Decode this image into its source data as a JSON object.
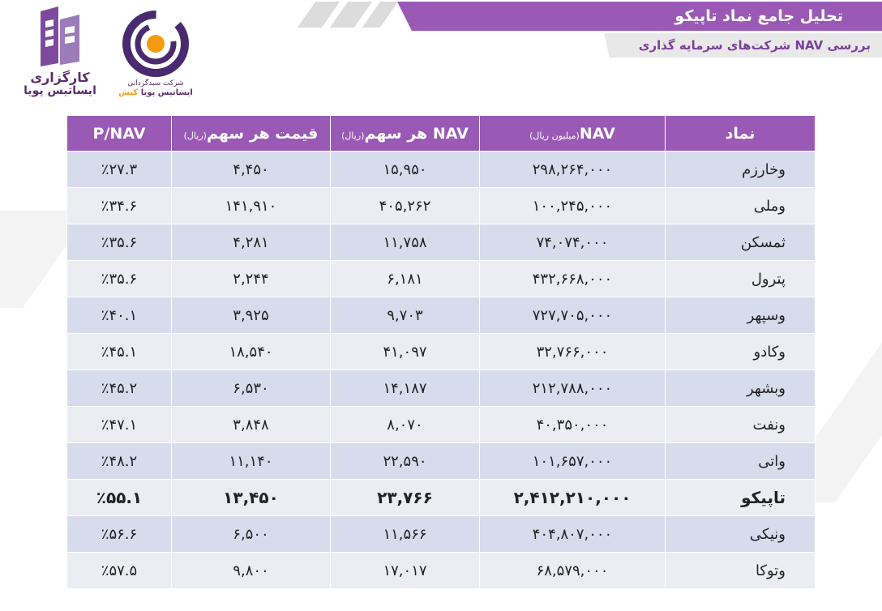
{
  "header": {
    "title": "تحلیل جامع نماد تاپیکو",
    "subtitle": "بررسی NAV شرکت‌های سرمایه گذاری"
  },
  "logos": {
    "left_line1": "کارگزاری",
    "left_line2": "ایساتیس پویا",
    "mid_caption1": "شرکت سبدگردانی",
    "mid_caption2_main": "ایساتیس پویا",
    "mid_caption2_accent": "کیش"
  },
  "colors": {
    "header_purple": "#9b59b6",
    "row_dark": "#d7dced",
    "row_light": "#ecedf3",
    "logo_orange": "#f39c12"
  },
  "table": {
    "headers": {
      "pnav": "P/NAV",
      "price": "قیمت هر سهم",
      "price_unit": "(ریال)",
      "nav_per_share": "NAV هر سهم",
      "nav_per_share_unit": "(ریال)",
      "nav": "NAV",
      "nav_unit": "(میلیون ریال)",
      "symbol": "نماد"
    },
    "rows": [
      {
        "symbol": "وخارزم",
        "nav": "۲۹۸,۲۶۴,۰۰۰",
        "nav_per_share": "۱۵,۹۵۰",
        "price": "۴,۴۵۰",
        "pnav": "٪۲۷.۳"
      },
      {
        "symbol": "وملی",
        "nav": "۱۰۰,۲۴۵,۰۰۰",
        "nav_per_share": "۴۰۵,۲۶۲",
        "price": "۱۴۱,۹۱۰",
        "pnav": "٪۳۴.۶"
      },
      {
        "symbol": "ثمسکن",
        "nav": "۷۴,۰۷۴,۰۰۰",
        "nav_per_share": "۱۱,۷۵۸",
        "price": "۴,۲۸۱",
        "pnav": "٪۳۵.۶"
      },
      {
        "symbol": "پترول",
        "nav": "۴۳۲,۶۶۸,۰۰۰",
        "nav_per_share": "۶,۱۸۱",
        "price": "۲,۲۴۴",
        "pnav": "٪۳۵.۶"
      },
      {
        "symbol": "وسپهر",
        "nav": "۷۲۷,۷۰۵,۰۰۰",
        "nav_per_share": "۹,۷۰۳",
        "price": "۳,۹۲۵",
        "pnav": "٪۴۰.۱"
      },
      {
        "symbol": "وکادو",
        "nav": "۳۲,۷۶۶,۰۰۰",
        "nav_per_share": "۴۱,۰۹۷",
        "price": "۱۸,۵۴۰",
        "pnav": "٪۴۵.۱"
      },
      {
        "symbol": "وبشهر",
        "nav": "۲۱۲,۷۸۸,۰۰۰",
        "nav_per_share": "۱۴,۱۸۷",
        "price": "۶,۵۳۰",
        "pnav": "٪۴۵.۲"
      },
      {
        "symbol": "ونفت",
        "nav": "۴۰,۳۵۰,۰۰۰",
        "nav_per_share": "۸,۰۷۰",
        "price": "۳,۸۴۸",
        "pnav": "٪۴۷.۱"
      },
      {
        "symbol": "واتی",
        "nav": "۱۰۱,۶۵۷,۰۰۰",
        "nav_per_share": "۲۲,۵۹۰",
        "price": "۱۱,۱۴۰",
        "pnav": "٪۴۸.۲"
      },
      {
        "symbol": "تاپیکو",
        "nav": "۲,۴۱۲,۲۱۰,۰۰۰",
        "nav_per_share": "۲۳,۷۶۶",
        "price": "۱۳,۴۵۰",
        "pnav": "٪۵۵.۱"
      },
      {
        "symbol": "ونیکی",
        "nav": "۴۰۴,۸۰۷,۰۰۰",
        "nav_per_share": "۱۱,۵۶۶",
        "price": "۶,۵۰۰",
        "pnav": "٪۵۶.۶"
      },
      {
        "symbol": "وتوکا",
        "nav": "۶۸,۵۷۹,۰۰۰",
        "nav_per_share": "۱۷,۰۱۷",
        "price": "۹,۸۰۰",
        "pnav": "٪۵۷.۵"
      }
    ]
  }
}
